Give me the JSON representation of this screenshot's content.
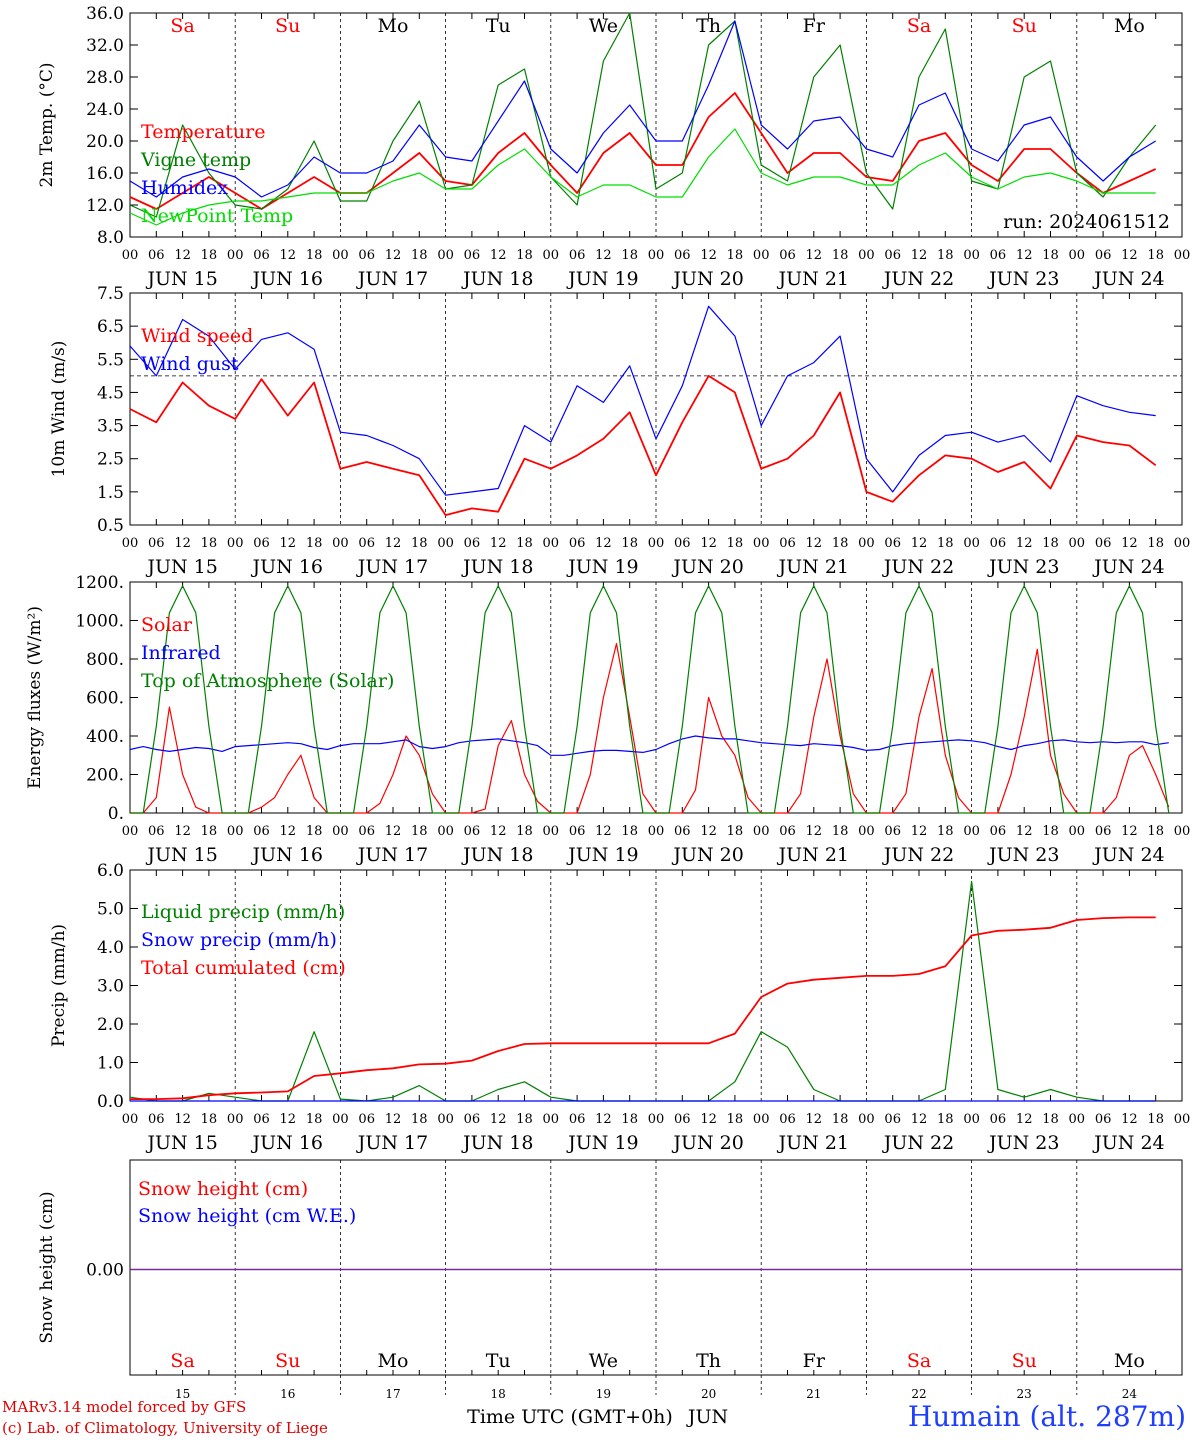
{
  "run_label": "run: 2024061512",
  "days": [
    {
      "abbr": "Sa",
      "date": "JUN 15",
      "num": "15",
      "weekend": true
    },
    {
      "abbr": "Su",
      "date": "JUN 16",
      "num": "16",
      "weekend": true
    },
    {
      "abbr": "Mo",
      "date": "JUN 17",
      "num": "17",
      "weekend": false
    },
    {
      "abbr": "Tu",
      "date": "JUN 18",
      "num": "18",
      "weekend": false
    },
    {
      "abbr": "We",
      "date": "JUN 19",
      "num": "19",
      "weekend": false
    },
    {
      "abbr": "Th",
      "date": "JUN 20",
      "num": "20",
      "weekend": false
    },
    {
      "abbr": "Fr",
      "date": "JUN 21",
      "num": "21",
      "weekend": false
    },
    {
      "abbr": "Sa",
      "date": "JUN 22",
      "num": "22",
      "weekend": true
    },
    {
      "abbr": "Su",
      "date": "JUN 23",
      "num": "23",
      "weekend": true
    },
    {
      "abbr": "Mo",
      "date": "JUN 24",
      "num": "24",
      "weekend": false
    }
  ],
  "hour_ticks": [
    "00",
    "06",
    "12",
    "18"
  ],
  "x_axis_title": "Time UTC (GMT+0h)",
  "x_month": "JUN",
  "credit_lines": [
    "MARv3.14 model forced by GFS",
    "(c) Lab. of Climatology, University of Liege"
  ],
  "station": "Humain (alt. 287m)",
  "colors": {
    "red": "#ff0000",
    "green": "#008000",
    "blue": "#0000ff",
    "lightgreen": "#00dd00",
    "purple": "#7a2aa0",
    "weekend": "#ff0000",
    "weekday": "#000000"
  },
  "chart_data": [
    {
      "id": "temperature",
      "type": "line",
      "ylabel": "2m Temp. (°C)",
      "ylim": [
        8,
        36
      ],
      "yticks": [
        "8.0",
        "12.0",
        "16.0",
        "20.0",
        "24.0",
        "28.0",
        "32.0",
        "36.0"
      ],
      "legend_placement": "left",
      "x_unit": "hours since JUN 15 00 UTC",
      "x_step_hours": 6,
      "series": [
        {
          "name": "Temperature",
          "color": "#ff0000",
          "values": [
            13,
            11.5,
            13.5,
            15.5,
            13.5,
            11.5,
            13.5,
            15.5,
            13.5,
            13.5,
            16,
            18.5,
            15,
            14.5,
            18.5,
            21,
            17,
            13.5,
            18.5,
            21,
            17,
            17,
            23,
            26,
            21,
            16,
            18.5,
            18.5,
            15.5,
            15,
            20,
            21,
            17,
            15,
            19,
            19,
            16,
            13.5,
            15,
            16.5
          ]
        },
        {
          "name": "Vigne temp",
          "color": "#008000",
          "values": [
            12,
            10.5,
            22,
            16,
            12,
            11.5,
            14,
            20,
            12.5,
            12.5,
            20,
            25,
            14,
            14.5,
            27,
            29,
            15.5,
            12,
            30,
            36,
            14,
            16,
            32,
            35,
            17,
            15,
            28,
            32,
            16,
            11.5,
            28,
            34,
            15,
            14,
            28,
            30,
            16,
            13,
            18,
            22
          ]
        },
        {
          "name": "Humidex",
          "color": "#0000ff",
          "values": [
            15,
            13,
            15.5,
            16.5,
            15.5,
            13,
            14.5,
            18,
            16,
            16,
            17.5,
            22,
            18,
            17.5,
            22.5,
            27.5,
            19,
            16,
            21,
            24.5,
            20,
            20,
            27,
            35,
            22,
            19,
            22.5,
            23,
            19,
            18,
            24.5,
            26,
            19,
            17.5,
            22,
            23,
            18,
            15,
            18,
            20
          ]
        },
        {
          "name": "NewPoint Temp",
          "color": "#00dd00",
          "values": [
            11,
            9.5,
            11,
            12,
            12.5,
            12.5,
            13,
            13.5,
            13.5,
            13.5,
            15,
            16,
            14,
            14,
            17,
            19,
            15.5,
            13,
            14.5,
            14.5,
            13,
            13,
            18,
            21.5,
            16,
            14.5,
            15.5,
            15.5,
            14.5,
            14.5,
            17,
            18.5,
            15.5,
            14,
            15.5,
            16,
            15,
            13.5,
            13.5,
            13.5
          ]
        }
      ]
    },
    {
      "id": "wind",
      "type": "line",
      "ylabel": "10m Wind (m/s)",
      "ylim": [
        0.5,
        7.5
      ],
      "yticks": [
        "0.5",
        "1.5",
        "2.5",
        "3.5",
        "4.5",
        "5.5",
        "6.5",
        "7.5"
      ],
      "reference_line": 5,
      "legend_placement": "left",
      "x_unit": "hours since JUN 15 00 UTC",
      "x_step_hours": 6,
      "series": [
        {
          "name": "Wind speed",
          "color": "#ff0000",
          "values": [
            4,
            3.6,
            4.8,
            4.1,
            3.7,
            4.9,
            3.8,
            4.8,
            2.2,
            2.4,
            2.2,
            2,
            0.8,
            1,
            0.9,
            2.5,
            2.2,
            2.6,
            3.1,
            3.9,
            2,
            3.6,
            5,
            4.5,
            2.2,
            2.5,
            3.2,
            4.5,
            1.5,
            1.2,
            2,
            2.6,
            2.5,
            2.1,
            2.4,
            1.6,
            3.2,
            3,
            2.9,
            2.3
          ]
        },
        {
          "name": "Wind gust",
          "color": "#0000ff",
          "values": [
            5.9,
            5,
            6.7,
            6.2,
            5.2,
            6.1,
            6.3,
            5.8,
            3.3,
            3.2,
            2.9,
            2.5,
            1.4,
            1.5,
            1.6,
            3.5,
            3,
            4.7,
            4.2,
            5.3,
            3.1,
            4.7,
            7.1,
            6.2,
            3.5,
            5,
            5.4,
            6.2,
            2.5,
            1.5,
            2.6,
            3.2,
            3.3,
            3,
            3.2,
            2.4,
            4.4,
            4.1,
            3.9,
            3.8
          ]
        }
      ]
    },
    {
      "id": "energy",
      "type": "line",
      "ylabel": "Energy fluxes (W/m²)",
      "ylim": [
        0,
        1200
      ],
      "yticks": [
        "0.",
        "200.",
        "400.",
        "600.",
        "800.",
        "1000.",
        "1200."
      ],
      "legend_placement": "left",
      "x_unit": "hours since JUN 15 00 UTC",
      "x_step_hours": 3,
      "series": [
        {
          "name": "Solar",
          "color": "#ff0000",
          "values": [
            0,
            0,
            80,
            550,
            200,
            30,
            0,
            0,
            0,
            0,
            30,
            80,
            200,
            300,
            80,
            0,
            0,
            0,
            0,
            50,
            200,
            400,
            300,
            100,
            0,
            0,
            0,
            20,
            350,
            480,
            200,
            60,
            0,
            0,
            0,
            200,
            600,
            880,
            500,
            100,
            0,
            0,
            0,
            120,
            600,
            400,
            300,
            80,
            0,
            0,
            0,
            100,
            500,
            800,
            400,
            100,
            0,
            0,
            0,
            100,
            500,
            750,
            300,
            80,
            0,
            0,
            0,
            200,
            500,
            850,
            300,
            100,
            0,
            0,
            0,
            80,
            300,
            350,
            200,
            30
          ]
        },
        {
          "name": "Infrared",
          "color": "#0000ff",
          "values": [
            330,
            345,
            330,
            320,
            330,
            340,
            335,
            320,
            345,
            350,
            355,
            360,
            365,
            360,
            340,
            330,
            350,
            360,
            360,
            360,
            370,
            380,
            345,
            335,
            345,
            365,
            375,
            380,
            385,
            375,
            365,
            350,
            300,
            300,
            310,
            320,
            325,
            325,
            320,
            315,
            330,
            360,
            385,
            400,
            390,
            385,
            385,
            375,
            365,
            360,
            355,
            350,
            360,
            355,
            350,
            340,
            325,
            330,
            350,
            360,
            365,
            370,
            375,
            380,
            375,
            365,
            345,
            330,
            350,
            360,
            375,
            380,
            370,
            365,
            370,
            365,
            370,
            370,
            355,
            365
          ]
        },
        {
          "name": "Top of Atmosphere (Solar)",
          "color": "#008000",
          "values": [
            0,
            0,
            450,
            1040,
            1180,
            1040,
            450,
            0,
            0,
            0,
            450,
            1040,
            1180,
            1040,
            450,
            0,
            0,
            0,
            450,
            1040,
            1180,
            1040,
            450,
            0,
            0,
            0,
            450,
            1040,
            1180,
            1040,
            450,
            0,
            0,
            0,
            450,
            1040,
            1180,
            1040,
            450,
            0,
            0,
            0,
            450,
            1040,
            1180,
            1040,
            450,
            0,
            0,
            0,
            450,
            1040,
            1180,
            1040,
            450,
            0,
            0,
            0,
            450,
            1040,
            1180,
            1040,
            450,
            0,
            0,
            0,
            450,
            1040,
            1180,
            1040,
            450,
            0,
            0,
            0,
            450,
            1040,
            1180,
            1040,
            450,
            0
          ]
        }
      ]
    },
    {
      "id": "precip",
      "type": "line",
      "ylabel": "Precip (mm/h)",
      "ylim": [
        0,
        6
      ],
      "yticks": [
        "0.0",
        "1.0",
        "2.0",
        "3.0",
        "4.0",
        "5.0",
        "6.0"
      ],
      "legend_placement": "left",
      "x_unit": "hours since JUN 15 00 UTC",
      "x_step_hours": 6,
      "series": [
        {
          "name": "Liquid precip (mm/h)",
          "color": "#008000",
          "values": [
            0.1,
            0,
            0,
            0.2,
            0.1,
            0,
            0,
            1.8,
            0.05,
            0,
            0.1,
            0.4,
            0,
            0,
            0.3,
            0.5,
            0.1,
            0,
            0,
            0,
            0,
            0,
            0,
            0.5,
            1.8,
            1.4,
            0.3,
            0,
            0,
            0,
            0,
            0.3,
            5.7,
            0.3,
            0.1,
            0.3,
            0.1,
            0,
            0,
            0
          ]
        },
        {
          "name": "Snow precip (mm/h)",
          "color": "#0000ff",
          "values": [
            0,
            0,
            0,
            0,
            0,
            0,
            0,
            0,
            0,
            0,
            0,
            0,
            0,
            0,
            0,
            0,
            0,
            0,
            0,
            0,
            0,
            0,
            0,
            0,
            0,
            0,
            0,
            0,
            0,
            0,
            0,
            0,
            0,
            0,
            0,
            0,
            0,
            0,
            0,
            0
          ]
        },
        {
          "name": "Total cumulated (cm)",
          "color": "#ff0000",
          "values": [
            0.05,
            0.05,
            0.07,
            0.15,
            0.2,
            0.22,
            0.25,
            0.65,
            0.72,
            0.8,
            0.85,
            0.95,
            0.97,
            1.05,
            1.3,
            1.48,
            1.5,
            1.5,
            1.5,
            1.5,
            1.5,
            1.5,
            1.5,
            1.75,
            2.7,
            3.05,
            3.15,
            3.2,
            3.25,
            3.25,
            3.3,
            3.5,
            4.3,
            4.42,
            4.45,
            4.5,
            4.7,
            4.75,
            4.77,
            4.77
          ]
        }
      ]
    },
    {
      "id": "snow",
      "type": "line",
      "ylabel": "Snow height (cm)",
      "yticks": [
        "0.00"
      ],
      "legend_placement": "left",
      "series": [
        {
          "name": "Snow height (cm)",
          "color": "#ff0000"
        },
        {
          "name": "Snow height (cm W.E.)",
          "color": "#0000ff"
        }
      ],
      "value": 0
    }
  ]
}
